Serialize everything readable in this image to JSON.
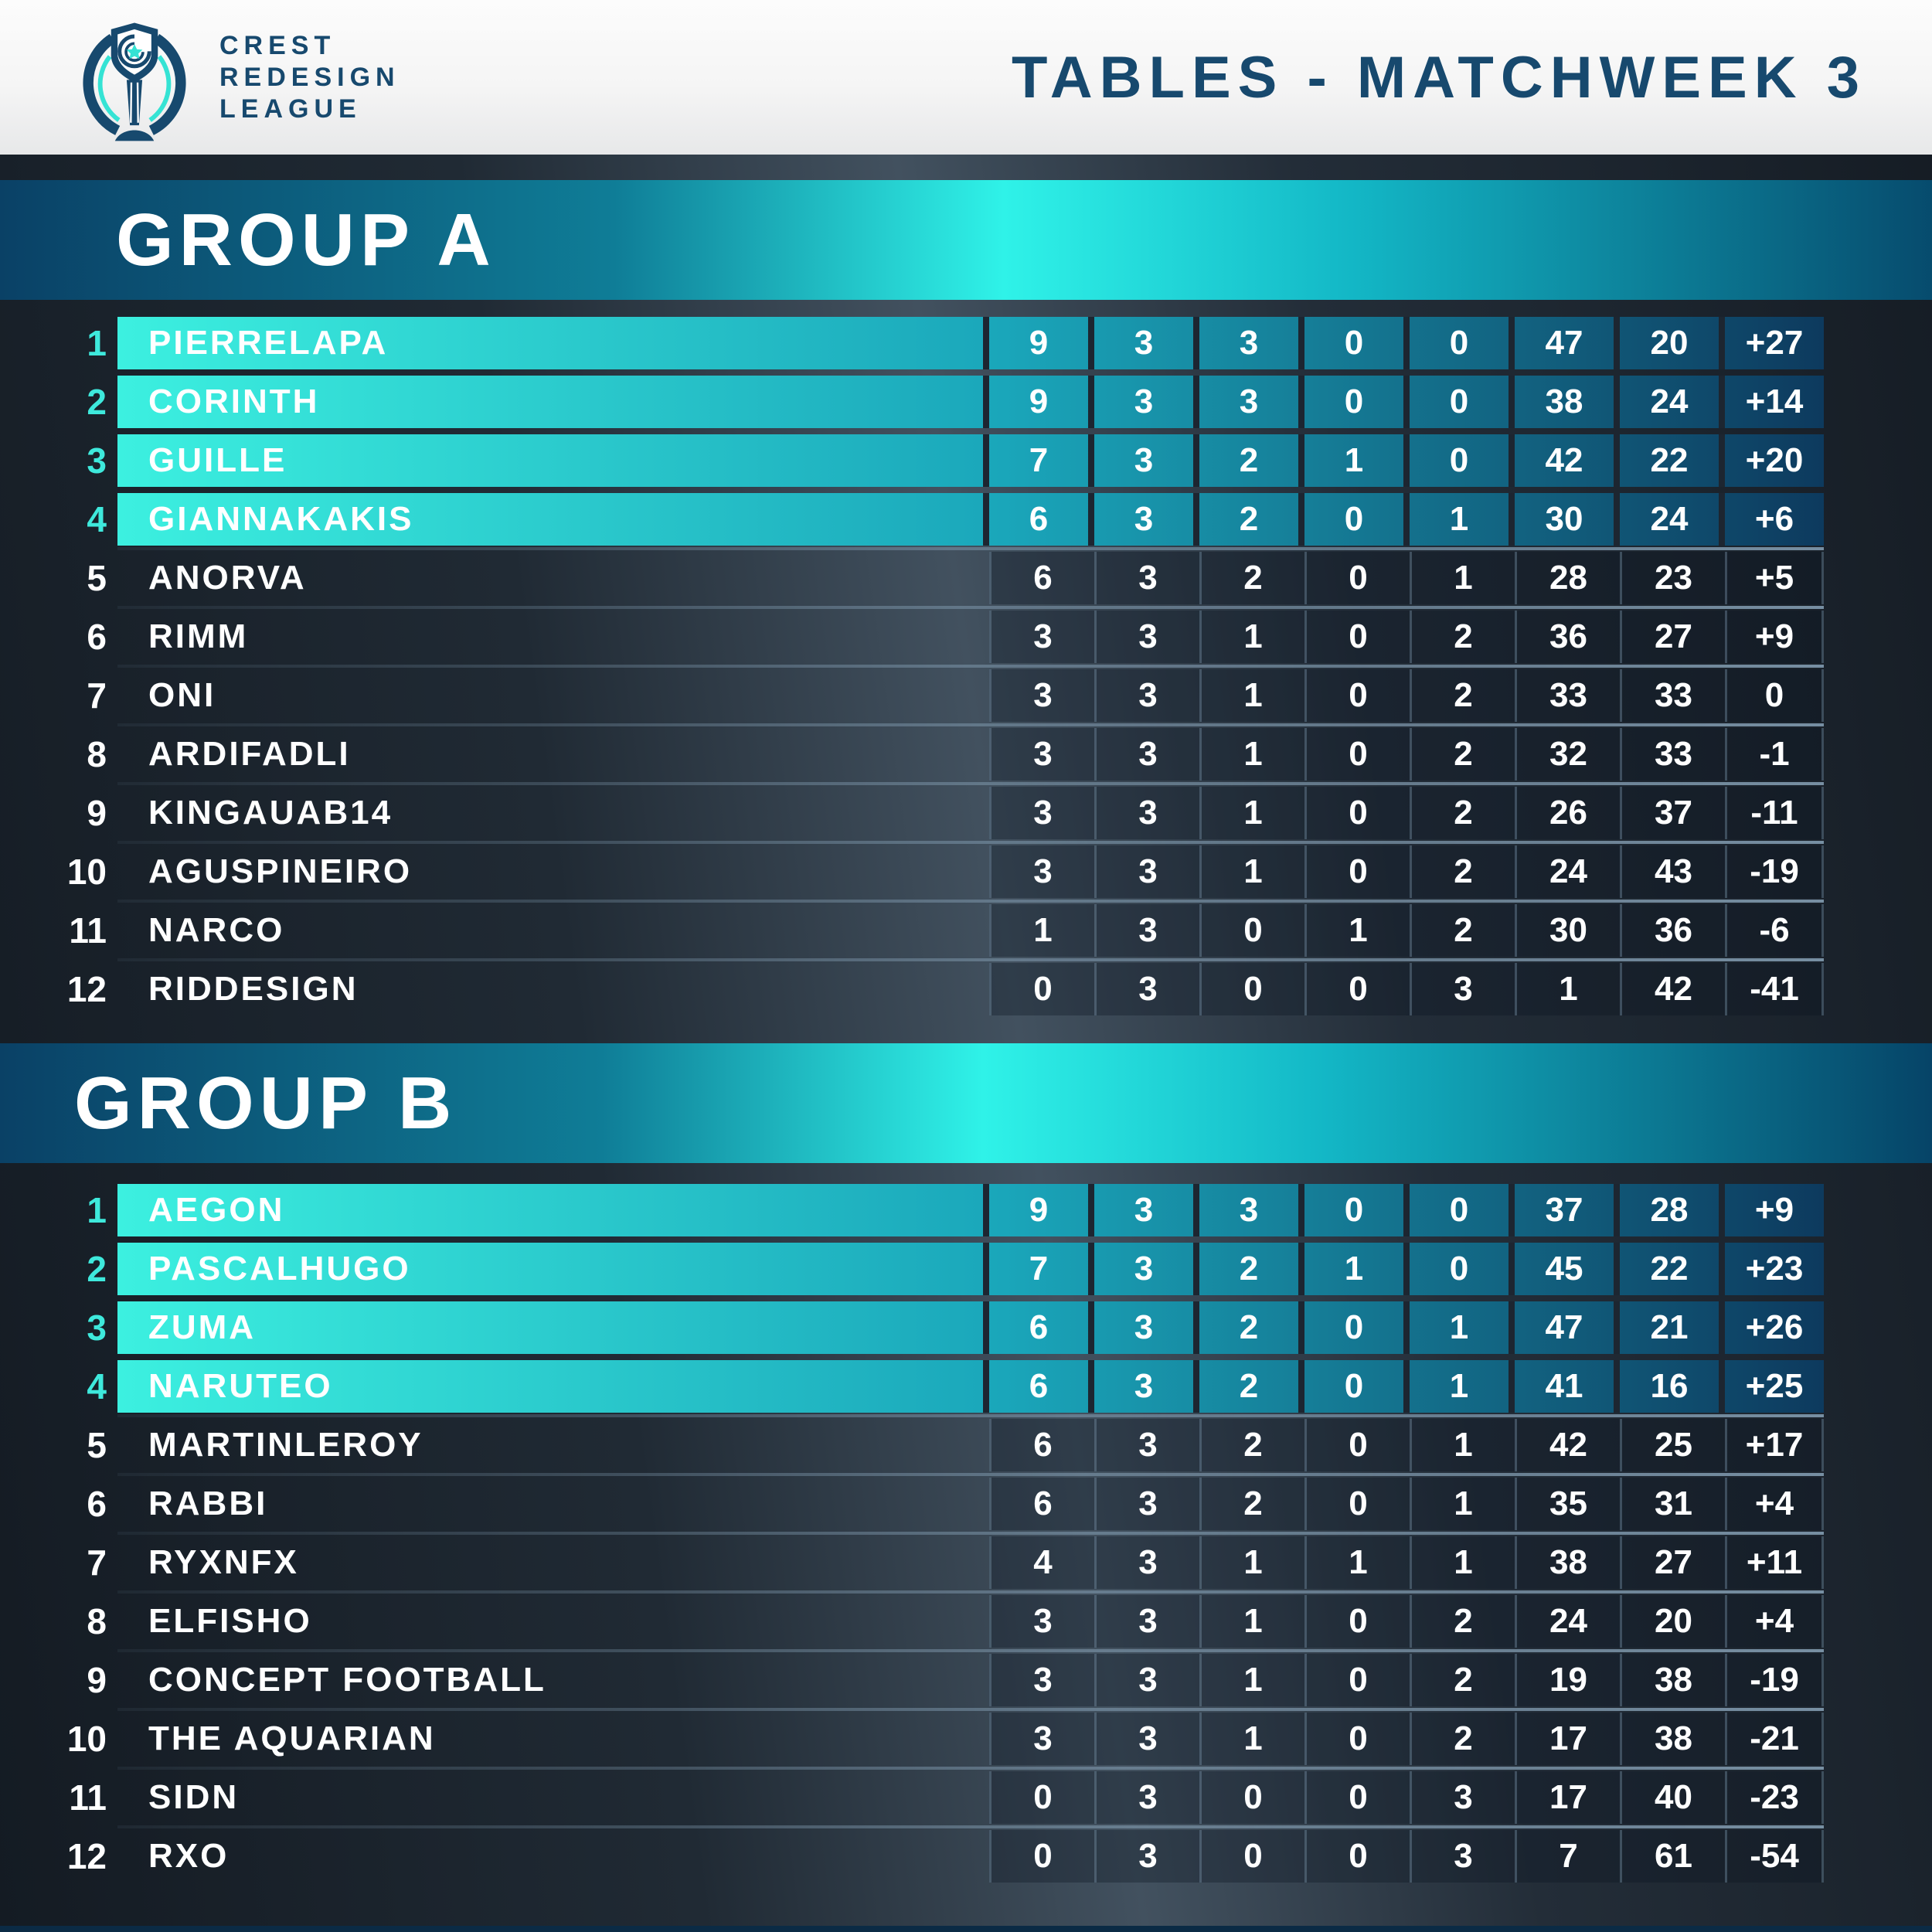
{
  "header": {
    "brand_lines": [
      "CREST",
      "REDESIGN",
      "LEAGUE"
    ],
    "title": "TABLES - MATCHWEEK 3"
  },
  "groups": [
    {
      "name": "GROUP A",
      "teams": [
        {
          "rank": "1",
          "name": "PIERRELAPA",
          "highlighted": true,
          "stats": [
            "9",
            "3",
            "3",
            "0",
            "0",
            "47",
            "20",
            "+27"
          ]
        },
        {
          "rank": "2",
          "name": "CORINTH",
          "highlighted": true,
          "stats": [
            "9",
            "3",
            "3",
            "0",
            "0",
            "38",
            "24",
            "+14"
          ]
        },
        {
          "rank": "3",
          "name": "GUILLE",
          "highlighted": true,
          "stats": [
            "7",
            "3",
            "2",
            "1",
            "0",
            "42",
            "22",
            "+20"
          ]
        },
        {
          "rank": "4",
          "name": "GIANNAKAKIS",
          "highlighted": true,
          "stats": [
            "6",
            "3",
            "2",
            "0",
            "1",
            "30",
            "24",
            "+6"
          ]
        },
        {
          "rank": "5",
          "name": "ANORVA",
          "highlighted": false,
          "stats": [
            "6",
            "3",
            "2",
            "0",
            "1",
            "28",
            "23",
            "+5"
          ]
        },
        {
          "rank": "6",
          "name": "RIMM",
          "highlighted": false,
          "stats": [
            "3",
            "3",
            "1",
            "0",
            "2",
            "36",
            "27",
            "+9"
          ]
        },
        {
          "rank": "7",
          "name": "ONI",
          "highlighted": false,
          "stats": [
            "3",
            "3",
            "1",
            "0",
            "2",
            "33",
            "33",
            "0"
          ]
        },
        {
          "rank": "8",
          "name": "ARDIFADLI",
          "highlighted": false,
          "stats": [
            "3",
            "3",
            "1",
            "0",
            "2",
            "32",
            "33",
            "-1"
          ]
        },
        {
          "rank": "9",
          "name": "KINGAUAB14",
          "highlighted": false,
          "stats": [
            "3",
            "3",
            "1",
            "0",
            "2",
            "26",
            "37",
            "-11"
          ]
        },
        {
          "rank": "10",
          "name": "AGUSPINEIRO",
          "highlighted": false,
          "stats": [
            "3",
            "3",
            "1",
            "0",
            "2",
            "24",
            "43",
            "-19"
          ]
        },
        {
          "rank": "11",
          "name": "NARCO",
          "highlighted": false,
          "stats": [
            "1",
            "3",
            "0",
            "1",
            "2",
            "30",
            "36",
            "-6"
          ]
        },
        {
          "rank": "12",
          "name": "RIDDESIGN",
          "highlighted": false,
          "stats": [
            "0",
            "3",
            "0",
            "0",
            "3",
            "1",
            "42",
            "-41"
          ]
        }
      ]
    },
    {
      "name": "GROUP B",
      "teams": [
        {
          "rank": "1",
          "name": "AEGON",
          "highlighted": true,
          "stats": [
            "9",
            "3",
            "3",
            "0",
            "0",
            "37",
            "28",
            "+9"
          ]
        },
        {
          "rank": "2",
          "name": "PASCALHUGO",
          "highlighted": true,
          "stats": [
            "7",
            "3",
            "2",
            "1",
            "0",
            "45",
            "22",
            "+23"
          ]
        },
        {
          "rank": "3",
          "name": "ZUMA",
          "highlighted": true,
          "stats": [
            "6",
            "3",
            "2",
            "0",
            "1",
            "47",
            "21",
            "+26"
          ]
        },
        {
          "rank": "4",
          "name": "NARUTEO",
          "highlighted": true,
          "stats": [
            "6",
            "3",
            "2",
            "0",
            "1",
            "41",
            "16",
            "+25"
          ]
        },
        {
          "rank": "5",
          "name": "MARTINLEROY",
          "highlighted": false,
          "stats": [
            "6",
            "3",
            "2",
            "0",
            "1",
            "42",
            "25",
            "+17"
          ]
        },
        {
          "rank": "6",
          "name": "RABBI",
          "highlighted": false,
          "stats": [
            "6",
            "3",
            "2",
            "0",
            "1",
            "35",
            "31",
            "+4"
          ]
        },
        {
          "rank": "7",
          "name": "RYXNFX",
          "highlighted": false,
          "stats": [
            "4",
            "3",
            "1",
            "1",
            "1",
            "38",
            "27",
            "+11"
          ]
        },
        {
          "rank": "8",
          "name": "ELFISHO",
          "highlighted": false,
          "stats": [
            "3",
            "3",
            "1",
            "0",
            "2",
            "24",
            "20",
            "+4"
          ]
        },
        {
          "rank": "9",
          "name": "CONCEPT FOOTBALL",
          "highlighted": false,
          "stats": [
            "3",
            "3",
            "1",
            "0",
            "2",
            "19",
            "38",
            "-19"
          ]
        },
        {
          "rank": "10",
          "name": "THE AQUARIAN",
          "highlighted": false,
          "stats": [
            "3",
            "3",
            "1",
            "0",
            "2",
            "17",
            "38",
            "-21"
          ]
        },
        {
          "rank": "11",
          "name": "SIDN",
          "highlighted": false,
          "stats": [
            "0",
            "3",
            "0",
            "0",
            "3",
            "17",
            "40",
            "-23"
          ]
        },
        {
          "rank": "12",
          "name": "RXO",
          "highlighted": false,
          "stats": [
            "0",
            "3",
            "0",
            "0",
            "3",
            "7",
            "61",
            "-54"
          ]
        }
      ]
    }
  ],
  "chart_data": [
    {
      "type": "table",
      "title": "GROUP A",
      "columns": [
        "rank",
        "team",
        "points",
        "played",
        "won",
        "drawn",
        "lost",
        "goals_for",
        "goals_against",
        "goal_difference"
      ],
      "highlighted_ranks": [
        1,
        2,
        3,
        4
      ],
      "rows": [
        [
          1,
          "PIERRELAPA",
          9,
          3,
          3,
          0,
          0,
          47,
          20,
          27
        ],
        [
          2,
          "CORINTH",
          9,
          3,
          3,
          0,
          0,
          38,
          24,
          14
        ],
        [
          3,
          "GUILLE",
          7,
          3,
          2,
          1,
          0,
          42,
          22,
          20
        ],
        [
          4,
          "GIANNAKAKIS",
          6,
          3,
          2,
          0,
          1,
          30,
          24,
          6
        ],
        [
          5,
          "ANORVA",
          6,
          3,
          2,
          0,
          1,
          28,
          23,
          5
        ],
        [
          6,
          "RIMM",
          3,
          3,
          1,
          0,
          2,
          36,
          27,
          9
        ],
        [
          7,
          "ONI",
          3,
          3,
          1,
          0,
          2,
          33,
          33,
          0
        ],
        [
          8,
          "ARDIFADLI",
          3,
          3,
          1,
          0,
          2,
          32,
          33,
          -1
        ],
        [
          9,
          "KINGAUAB14",
          3,
          3,
          1,
          0,
          2,
          26,
          37,
          -11
        ],
        [
          10,
          "AGUSPINEIRO",
          3,
          3,
          1,
          0,
          2,
          24,
          43,
          -19
        ],
        [
          11,
          "NARCO",
          1,
          3,
          0,
          1,
          2,
          30,
          36,
          -6
        ],
        [
          12,
          "RIDDESIGN",
          0,
          3,
          0,
          0,
          3,
          1,
          42,
          -41
        ]
      ]
    },
    {
      "type": "table",
      "title": "GROUP B",
      "columns": [
        "rank",
        "team",
        "points",
        "played",
        "won",
        "drawn",
        "lost",
        "goals_for",
        "goals_against",
        "goal_difference"
      ],
      "highlighted_ranks": [
        1,
        2,
        3,
        4
      ],
      "rows": [
        [
          1,
          "AEGON",
          9,
          3,
          3,
          0,
          0,
          37,
          28,
          9
        ],
        [
          2,
          "PASCALHUGO",
          7,
          3,
          2,
          1,
          0,
          45,
          22,
          23
        ],
        [
          3,
          "ZUMA",
          6,
          3,
          2,
          0,
          1,
          47,
          21,
          26
        ],
        [
          4,
          "NARUTEO",
          6,
          3,
          2,
          0,
          1,
          41,
          16,
          25
        ],
        [
          5,
          "MARTINLEROY",
          6,
          3,
          2,
          0,
          1,
          42,
          25,
          17
        ],
        [
          6,
          "RABBI",
          6,
          3,
          2,
          0,
          1,
          35,
          31,
          4
        ],
        [
          7,
          "RYXNFX",
          4,
          3,
          1,
          1,
          1,
          38,
          27,
          11
        ],
        [
          8,
          "ELFISHO",
          3,
          3,
          1,
          0,
          2,
          24,
          20,
          4
        ],
        [
          9,
          "CONCEPT FOOTBALL",
          3,
          3,
          1,
          0,
          2,
          19,
          38,
          -19
        ],
        [
          10,
          "THE AQUARIAN",
          3,
          3,
          1,
          0,
          2,
          17,
          38,
          -21
        ],
        [
          11,
          "SIDN",
          0,
          3,
          0,
          0,
          3,
          17,
          40,
          -23
        ],
        [
          12,
          "RXO",
          0,
          3,
          0,
          0,
          3,
          7,
          61,
          -54
        ]
      ]
    }
  ],
  "colors": {
    "navy_text": "#17496e",
    "cyan_accent": "#3ee9dc",
    "banner_bright": "#2ff2e8",
    "banner_dark": "#04365c",
    "row_gradient_start": "#3cf0e0",
    "row_gradient_end": "#0d3a5e",
    "page_background": "#1d2631"
  }
}
